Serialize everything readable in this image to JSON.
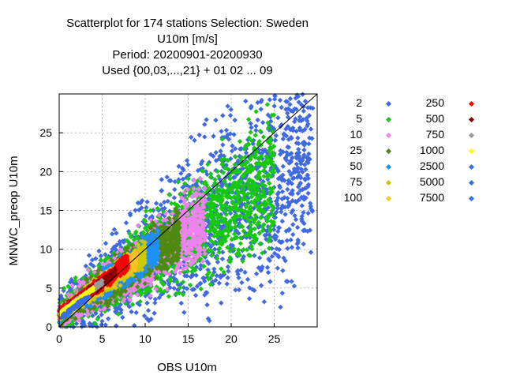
{
  "chart_data": {
    "type": "scatter",
    "title_lines": [
      "Scatterplot for  174 stations Selection: Sweden",
      "U10m [m/s]",
      "Period: 20200901-20200930",
      "Used {00,03,...,21} + 01 02 ... 09"
    ],
    "xlabel": "OBS U10m",
    "ylabel": "MNWC_preop U10m",
    "xlim": [
      0,
      30
    ],
    "ylim": [
      0,
      30
    ],
    "xticks": [
      0,
      5,
      10,
      15,
      20,
      25
    ],
    "yticks": [
      0,
      5,
      10,
      15,
      20,
      25
    ],
    "grid": true,
    "diagonal_line": true,
    "legend_placement": "right",
    "legend": [
      {
        "count": "2",
        "color": "#4169e1"
      },
      {
        "count": "5",
        "color": "#17c80f"
      },
      {
        "count": "10",
        "color": "#ee82ee"
      },
      {
        "count": "25",
        "color": "#4f8a10"
      },
      {
        "count": "50",
        "color": "#1e90ff"
      },
      {
        "count": "75",
        "color": "#cdc800"
      },
      {
        "count": "100",
        "color": "#ffc125"
      },
      {
        "count": "250",
        "color": "#ff0000"
      },
      {
        "count": "500",
        "color": "#8b0000"
      },
      {
        "count": "750",
        "color": "#999999"
      },
      {
        "count": "1000",
        "color": "#ffff00"
      },
      {
        "count": "2500",
        "color": "#3a6fe0"
      },
      {
        "count": "5000",
        "color": "#3a6fe0"
      },
      {
        "count": "7500",
        "color": "#3a6fe0"
      }
    ],
    "density_bands": [
      {
        "level": 0,
        "color": "#4169e1",
        "slope": 0.72,
        "intercept": 1.3,
        "spread": 5.5,
        "xmax": 29.5,
        "n": 1600
      },
      {
        "level": 1,
        "color": "#17c80f",
        "slope": 0.72,
        "intercept": 1.4,
        "spread": 3.6,
        "xmax": 25.0,
        "n": 1500
      },
      {
        "level": 2,
        "color": "#ee82ee",
        "slope": 0.72,
        "intercept": 1.5,
        "spread": 2.7,
        "xmax": 17.0,
        "n": 1200
      },
      {
        "level": 3,
        "color": "#4f8a10",
        "slope": 0.74,
        "intercept": 1.5,
        "spread": 2.1,
        "xmax": 14.0,
        "n": 1100
      },
      {
        "level": 4,
        "color": "#1e90ff",
        "slope": 0.76,
        "intercept": 1.6,
        "spread": 1.6,
        "xmax": 11.5,
        "n": 1000
      },
      {
        "level": 5,
        "color": "#cdc800",
        "slope": 0.78,
        "intercept": 1.6,
        "spread": 1.2,
        "xmax": 10.0,
        "n": 900
      },
      {
        "level": 6,
        "color": "#ffc125",
        "slope": 0.8,
        "intercept": 1.6,
        "spread": 1.0,
        "xmax": 9.0,
        "n": 700
      },
      {
        "level": 7,
        "color": "#ff0000",
        "slope": 0.82,
        "intercept": 1.7,
        "spread": 0.8,
        "xmax": 8.0,
        "n": 800
      },
      {
        "level": 8,
        "color": "#8b0000",
        "slope": 0.82,
        "intercept": 1.7,
        "spread": 0.5,
        "xmax": 6.5,
        "n": 350
      },
      {
        "level": 9,
        "color": "#999999",
        "slope": 0.82,
        "intercept": 1.7,
        "spread": 0.35,
        "xmax": 5.0,
        "n": 150
      },
      {
        "level": 10,
        "color": "#ffff00",
        "slope": 0.82,
        "intercept": 1.7,
        "spread": 0.25,
        "xmax": 4.0,
        "n": 80
      },
      {
        "level": 11,
        "color": "#3a6fe0",
        "slope": 0.85,
        "intercept": 1.0,
        "spread": 0.35,
        "xmax": 3.5,
        "n": 80
      }
    ]
  }
}
